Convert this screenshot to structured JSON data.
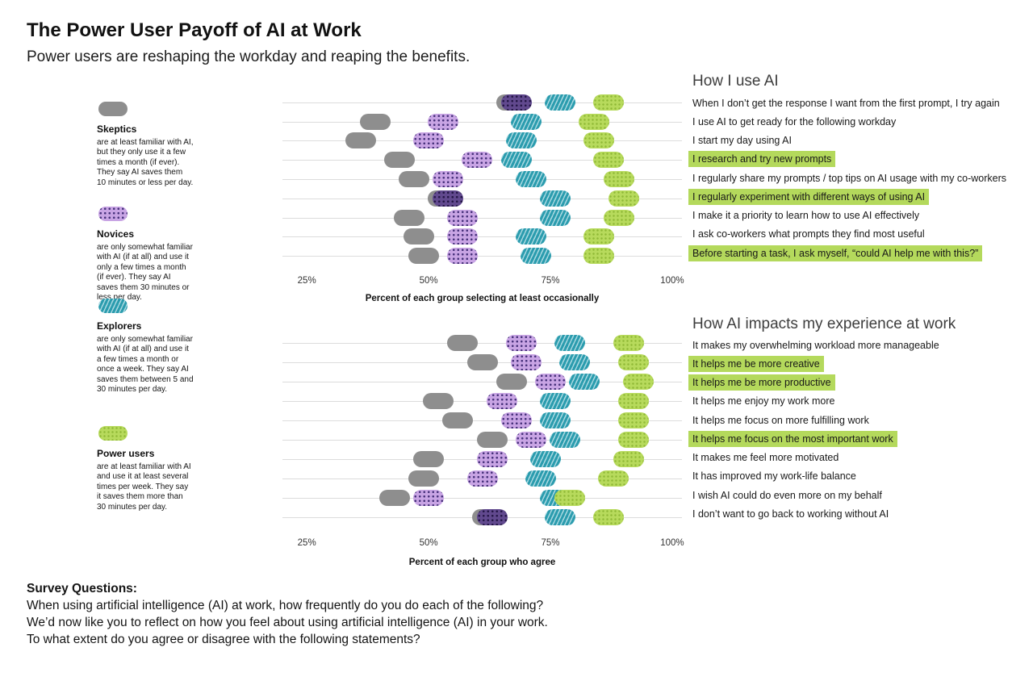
{
  "header": {
    "title": "The Power User Payoff of AI at Work",
    "subtitle": "Power users are reshaping the workday and reaping the benefits."
  },
  "legend": {
    "items": [
      {
        "key": "skeptics",
        "name": "Skeptics",
        "description": "are at least familiar with AI, but they only use it a few times a month (if ever). They say AI saves them 10 minutes or less per day."
      },
      {
        "key": "novices",
        "name": "Novices",
        "description": "are only somewhat familiar with AI (if at all) and use it only a few times a month (if ever). They say AI saves them 30 minutes or less per day."
      },
      {
        "key": "explorers",
        "name": "Explorers",
        "description": "are only somewhat familiar with AI (if at all) and use it a few times a month or once a week. They say AI saves them between 5 and 30 minutes per day."
      },
      {
        "key": "power",
        "name": "Power users",
        "description": "are at least familiar with AI and use it at least several times per week. They say it saves them more than 30 minutes per day."
      }
    ]
  },
  "chart_data": [
    {
      "type": "scatter",
      "variant": "dot-plot",
      "title": "How I use AI",
      "xlabel": "Percent of each group selecting at least occasionally",
      "xlim": [
        20,
        102
      ],
      "ticks": [
        25,
        50,
        75,
        100
      ],
      "tick_suffix": "%",
      "grid": "horizontal",
      "legend_position": "left",
      "highlighted": [
        3,
        5,
        8
      ],
      "categories": [
        "When I don’t get the response I want from the first prompt, I try again",
        "I use AI to get ready for the following workday",
        "I start my day using AI",
        "I research and try new prompts",
        "I regularly share my prompts / top tips on AI usage with my co-workers",
        "I regularly experiment with different ways of using AI",
        "I make it a priority to learn how to use AI effectively",
        "I ask co-workers what prompts they find most useful",
        "Before starting a task, I ask myself, “could AI help me with this?”"
      ],
      "series": [
        {
          "name": "Skeptics",
          "key": "skeptics",
          "values": [
            67,
            39,
            36,
            44,
            47,
            53,
            46,
            48,
            49
          ]
        },
        {
          "name": "Novices",
          "key": "novices",
          "values": [
            68,
            53,
            50,
            60,
            54,
            54,
            57,
            57,
            57
          ]
        },
        {
          "name": "Explorers",
          "key": "explorers",
          "values": [
            77,
            70,
            69,
            68,
            71,
            76,
            76,
            71,
            72
          ]
        },
        {
          "name": "Power users",
          "key": "power",
          "values": [
            87,
            84,
            85,
            87,
            89,
            90,
            89,
            85,
            85
          ]
        }
      ]
    },
    {
      "type": "scatter",
      "variant": "dot-plot",
      "title": "How AI impacts my experience at work",
      "xlabel": "Percent of each group who agree",
      "xlim": [
        20,
        102
      ],
      "ticks": [
        25,
        50,
        75,
        100
      ],
      "tick_suffix": "%",
      "grid": "horizontal",
      "legend_position": "left",
      "highlighted": [
        1,
        2,
        5
      ],
      "categories": [
        "It makes my overwhelming workload more manageable",
        "It helps me be more creative",
        "It helps me be more productive",
        "It helps me enjoy my work more",
        "It helps me focus on more fulfilling work",
        "It helps me focus on the most important work",
        "It makes me feel more motivated",
        "It has improved my work-life balance",
        "I wish AI could do even more on my behalf",
        "I don’t want to go back to working without AI"
      ],
      "series": [
        {
          "name": "Skeptics",
          "key": "skeptics",
          "values": [
            57,
            61,
            67,
            52,
            56,
            63,
            50,
            49,
            43,
            62
          ]
        },
        {
          "name": "Novices",
          "key": "novices",
          "values": [
            69,
            70,
            75,
            65,
            68,
            71,
            63,
            61,
            50,
            63
          ]
        },
        {
          "name": "Explorers",
          "key": "explorers",
          "values": [
            79,
            80,
            82,
            76,
            76,
            78,
            74,
            73,
            76,
            77
          ]
        },
        {
          "name": "Power users",
          "key": "power",
          "values": [
            91,
            92,
            93,
            92,
            92,
            92,
            91,
            88,
            79,
            87
          ]
        }
      ]
    }
  ],
  "survey": {
    "heading": "Survey Questions:",
    "lines": [
      "When using artificial intelligence (AI) at work, how frequently do you do each of the following?",
      "We’d now like you to reflect on how you feel about using artificial intelligence (AI) in your work.",
      "To what extent do you agree or disagree with the following statements?"
    ]
  },
  "colors": {
    "skeptics": "#8e8e8e",
    "novices_base": "#c8a4e4",
    "novices_dot": "#46307a",
    "overlap_base": "#61498e",
    "explorers_teal": "#2b9cae",
    "power_base": "#b7da5c",
    "power_dot": "#8fb836",
    "highlight": "#b4d95c",
    "gridline": "#dcdcdc"
  }
}
